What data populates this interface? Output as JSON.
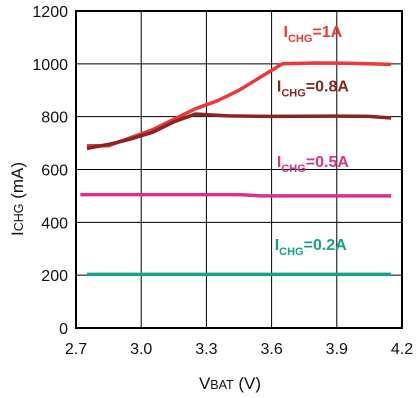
{
  "chart_data": {
    "type": "line",
    "x_axis": {
      "label_main": "V",
      "label_sub": "BAT",
      "label_unit": " (V)",
      "range": [
        2.7,
        4.2
      ],
      "ticks": [
        2.7,
        3.0,
        3.3,
        3.6,
        3.9,
        4.2
      ],
      "tick_labels": [
        "2.7",
        "3.0",
        "3.3",
        "3.6",
        "3.9",
        "4.2"
      ]
    },
    "y_axis": {
      "label_main": "I",
      "label_sub": "CHG",
      "label_unit": " (mA)",
      "range": [
        0,
        1200
      ],
      "ticks": [
        0,
        200,
        400,
        600,
        800,
        1000,
        1200
      ],
      "tick_labels": [
        "0",
        "200",
        "400",
        "600",
        "800",
        "1000",
        "1200"
      ]
    },
    "grid": true,
    "series": [
      {
        "name": "ICHG=1A",
        "label_pre": "I",
        "label_sub": "CHG",
        "label_post": "=1A",
        "color": "#e8393b",
        "points": [
          [
            2.75,
            690
          ],
          [
            2.85,
            690
          ],
          [
            2.95,
            720
          ],
          [
            3.05,
            750
          ],
          [
            3.15,
            790
          ],
          [
            3.25,
            830
          ],
          [
            3.35,
            860
          ],
          [
            3.45,
            900
          ],
          [
            3.55,
            950
          ],
          [
            3.65,
            1000
          ],
          [
            3.8,
            1003
          ],
          [
            3.95,
            1002
          ],
          [
            4.15,
            998
          ]
        ]
      },
      {
        "name": "ICHG=0.8A",
        "label_pre": "I",
        "label_sub": "CHG",
        "label_post": "=0.8A",
        "color": "#8b2323",
        "points": [
          [
            2.75,
            680
          ],
          [
            2.85,
            695
          ],
          [
            2.95,
            715
          ],
          [
            3.05,
            740
          ],
          [
            3.15,
            780
          ],
          [
            3.25,
            810
          ],
          [
            3.4,
            803
          ],
          [
            3.6,
            801
          ],
          [
            3.9,
            802
          ],
          [
            4.05,
            801
          ],
          [
            4.15,
            795
          ]
        ]
      },
      {
        "name": "ICHG=0.5A",
        "label_pre": "I",
        "label_sub": "CHG",
        "label_post": "=0.5A",
        "color": "#d6338c",
        "points": [
          [
            2.72,
            505
          ],
          [
            3.0,
            505
          ],
          [
            3.3,
            505
          ],
          [
            3.45,
            505
          ],
          [
            3.55,
            500
          ],
          [
            3.8,
            500
          ],
          [
            4.15,
            500
          ]
        ]
      },
      {
        "name": "ICHG=0.2A",
        "label_pre": "I",
        "label_sub": "CHG",
        "label_post": "=0.2A",
        "color": "#17a086",
        "points": [
          [
            2.75,
            203
          ],
          [
            3.0,
            203
          ],
          [
            3.3,
            203
          ],
          [
            3.6,
            203
          ],
          [
            3.9,
            203
          ],
          [
            4.15,
            203
          ]
        ]
      }
    ],
    "series_label_positions": [
      {
        "x": 3.79,
        "y": 1102
      },
      {
        "x": 3.79,
        "y": 895
      },
      {
        "x": 3.79,
        "y": 610
      },
      {
        "x": 3.78,
        "y": 295
      }
    ]
  }
}
